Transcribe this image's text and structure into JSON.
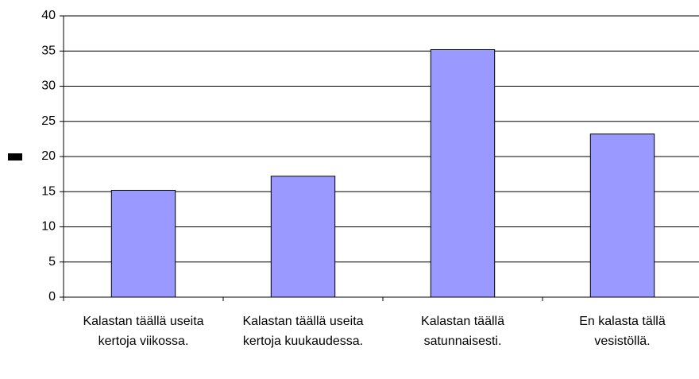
{
  "chart_data": {
    "type": "bar",
    "categories": [
      "Kalastan täällä useita kertoja viikossa.",
      "Kalastan täällä useita kertoja kuukaudessa.",
      "Kalastan täällä satunnaisesti.",
      "En kalasta tällä vesistöllä."
    ],
    "values": [
      15.2,
      17.2,
      35.2,
      23.2
    ],
    "color": "#9999ff",
    "ylim": [
      0,
      40
    ],
    "yticks": [
      0,
      5,
      10,
      15,
      20,
      25,
      30,
      35,
      40
    ],
    "grid": true
  }
}
